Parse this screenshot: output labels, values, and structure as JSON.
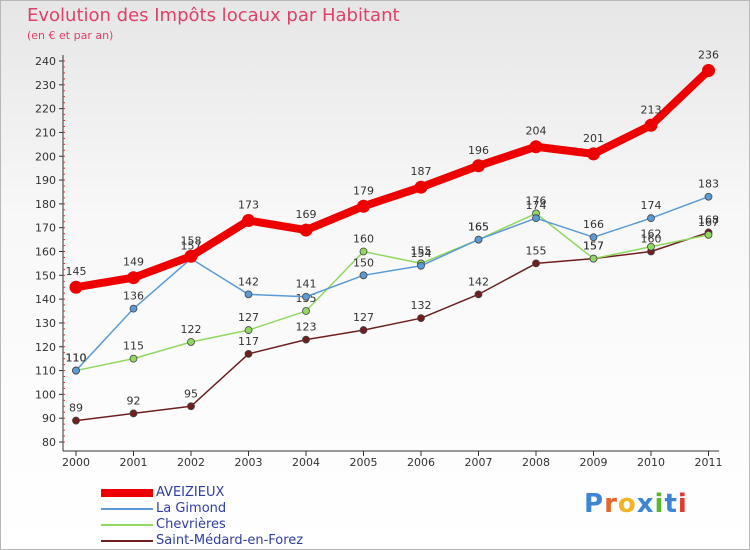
{
  "title": "Evolution des Impôts locaux par Habitant",
  "subtitle": "(en € et par an)",
  "logo_text": "Proxiti",
  "logo_colors": [
    "#3d86d6",
    "#e8672a",
    "#f2b324",
    "#3d86d6",
    "#5bb530",
    "#3d86d6",
    "#e03b2c"
  ],
  "chart_data": {
    "type": "line",
    "x": [
      "2000",
      "2001",
      "2002",
      "2003",
      "2004",
      "2005",
      "2006",
      "2007",
      "2008",
      "2009",
      "2010",
      "2011"
    ],
    "ylim": [
      80,
      240
    ],
    "yticks": [
      80,
      90,
      100,
      110,
      120,
      130,
      140,
      150,
      160,
      170,
      180,
      190,
      200,
      210,
      220,
      230,
      240
    ],
    "grid": false,
    "legend_position": "bottom-left",
    "series": [
      {
        "name": "AVEIZIEUX",
        "color": "#ee0000",
        "values": [
          145,
          149,
          158,
          173,
          169,
          179,
          187,
          196,
          204,
          201,
          213,
          236
        ]
      },
      {
        "name": "La Gimond",
        "color": "#5b9bd5",
        "values": [
          110,
          136,
          157,
          142,
          141,
          150,
          154,
          165,
          174,
          166,
          174,
          183
        ]
      },
      {
        "name": "Chevrières",
        "color": "#90d860",
        "values": [
          110,
          115,
          122,
          127,
          135,
          160,
          155,
          165,
          176,
          157,
          162,
          167
        ]
      },
      {
        "name": "Saint-Médard-en-Forez",
        "color": "#6e2020",
        "values": [
          89,
          92,
          95,
          117,
          123,
          127,
          132,
          142,
          155,
          157,
          160,
          168
        ]
      }
    ]
  }
}
